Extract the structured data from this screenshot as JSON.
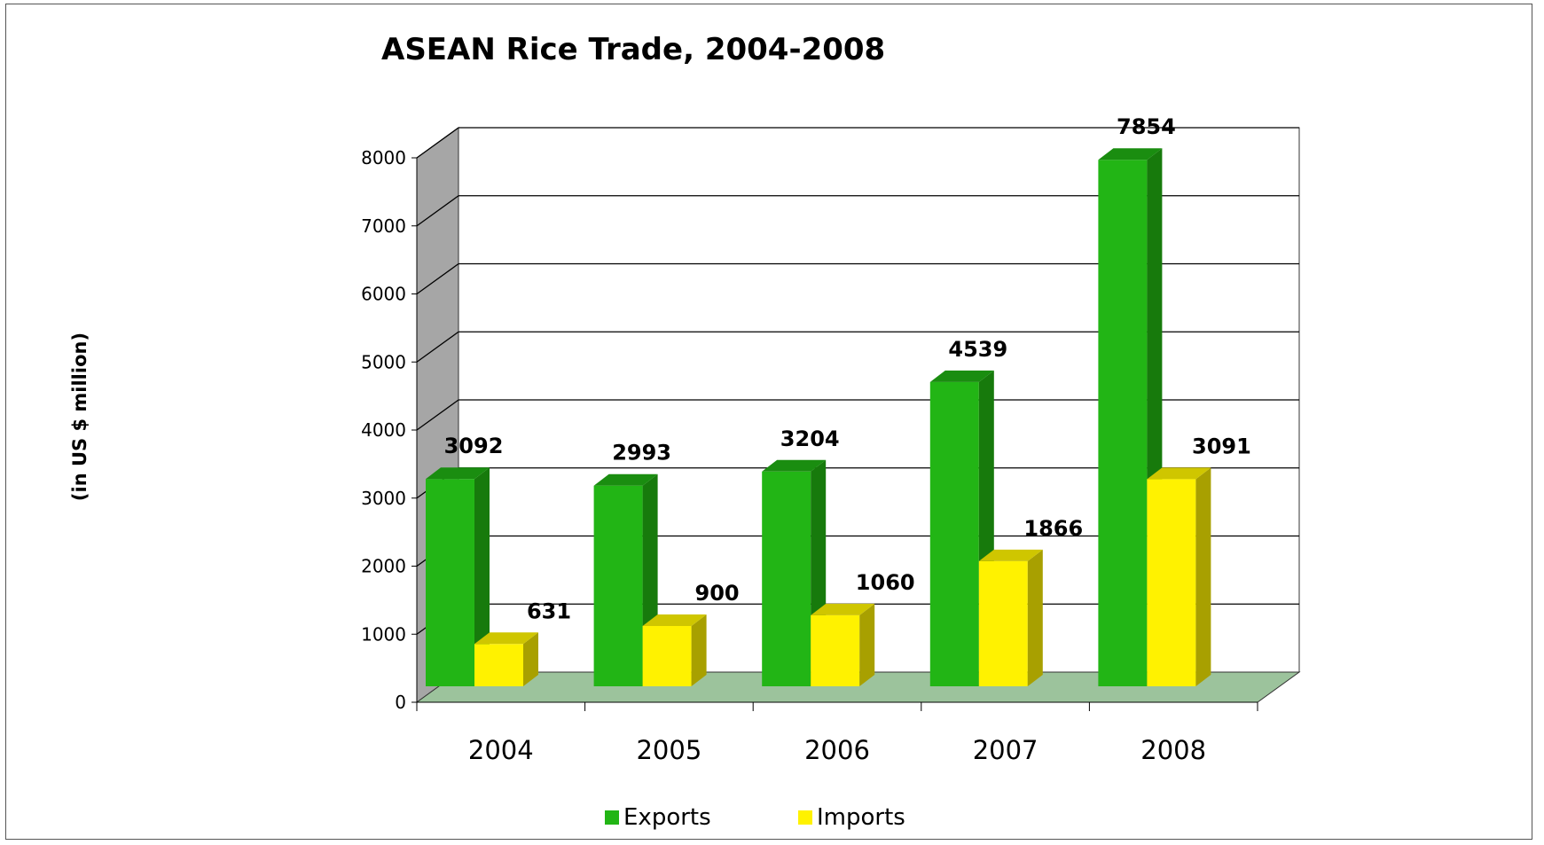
{
  "chart_data": {
    "type": "bar",
    "title": "ASEAN Rice Trade, 2004-2008",
    "ylabel": "(in US $ million)",
    "xlabel": "",
    "categories": [
      "2004",
      "2005",
      "2006",
      "2007",
      "2008"
    ],
    "series": [
      {
        "name": "Exports",
        "values": [
          3092,
          2993,
          3204,
          4539,
          7854
        ],
        "color": "#22b515",
        "side_color": "#177a0c",
        "top_color": "#1a8d10"
      },
      {
        "name": "Imports",
        "values": [
          631,
          900,
          1060,
          1866,
          3091
        ],
        "color": "#fff200",
        "side_color": "#a8a000",
        "top_color": "#cfc600"
      }
    ],
    "ylim": [
      0,
      8000
    ],
    "yticks": [
      0,
      1000,
      2000,
      3000,
      4000,
      5000,
      6000,
      7000,
      8000
    ],
    "grid": true,
    "legend": "bottom",
    "wall_color": "#a6a6a6",
    "floor_color": "#9cc39c"
  }
}
